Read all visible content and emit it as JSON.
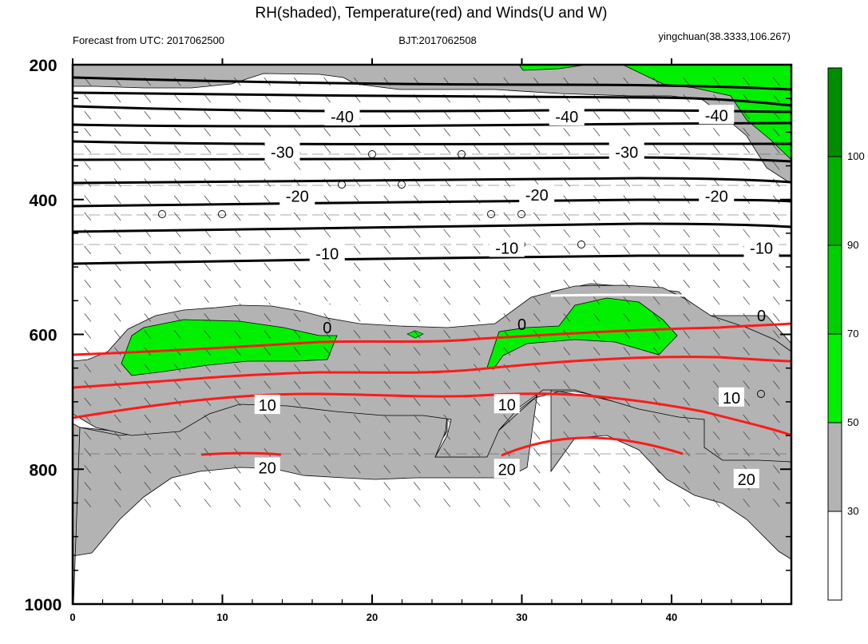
{
  "chart_data": {
    "type": "contour",
    "title": "RH(shaded), Temperature(red) and Winds(U and W)",
    "subtitle_left": "Forecast from UTC: 2017062500",
    "subtitle_center": "BJT:2017062508",
    "subtitle_right": "yingchuan(38.3333,106.267)",
    "x_range": [
      0,
      48
    ],
    "x_ticks": [
      "0",
      "10",
      "20",
      "30",
      "40"
    ],
    "y_range": [
      200,
      1000
    ],
    "y_ticks": [
      "200",
      "400",
      "600",
      "800",
      "1000"
    ],
    "colorbar": {
      "labels": [
        "30",
        "50",
        "70",
        "90",
        "100"
      ],
      "colors": [
        "#ffffff",
        "#b3b3b3",
        "#00f000",
        "#00d000",
        "#00b000",
        "#008c00"
      ],
      "bounds": [
        30,
        50,
        70,
        90,
        100
      ]
    },
    "temperature_labels": {
      "black": [
        {
          "text": "-40",
          "x": 18,
          "p": 277
        },
        {
          "text": "-40",
          "x": 33,
          "p": 277
        },
        {
          "text": "-40",
          "x": 43,
          "p": 275
        },
        {
          "text": "-30",
          "x": 14,
          "p": 330
        },
        {
          "text": "-30",
          "x": 37,
          "p": 330
        },
        {
          "text": "-20",
          "x": 15,
          "p": 395
        },
        {
          "text": "-20",
          "x": 31,
          "p": 393
        },
        {
          "text": "-20",
          "x": 43,
          "p": 395
        },
        {
          "text": "-10",
          "x": 17,
          "p": 480
        },
        {
          "text": "-10",
          "x": 29,
          "p": 472
        },
        {
          "text": "-10",
          "x": 46,
          "p": 472
        }
      ],
      "white": [
        {
          "text": "0",
          "x": 17,
          "p": 590
        },
        {
          "text": "0",
          "x": 30,
          "p": 585
        },
        {
          "text": "0",
          "x": 46,
          "p": 572
        }
      ],
      "red": [
        {
          "text": "10",
          "x": 13,
          "p": 705
        },
        {
          "text": "10",
          "x": 29,
          "p": 704
        },
        {
          "text": "10",
          "x": 44,
          "p": 694
        },
        {
          "text": "20",
          "x": 13,
          "p": 798
        },
        {
          "text": "20",
          "x": 29,
          "p": 800
        },
        {
          "text": "20",
          "x": 45,
          "p": 815
        }
      ]
    }
  }
}
